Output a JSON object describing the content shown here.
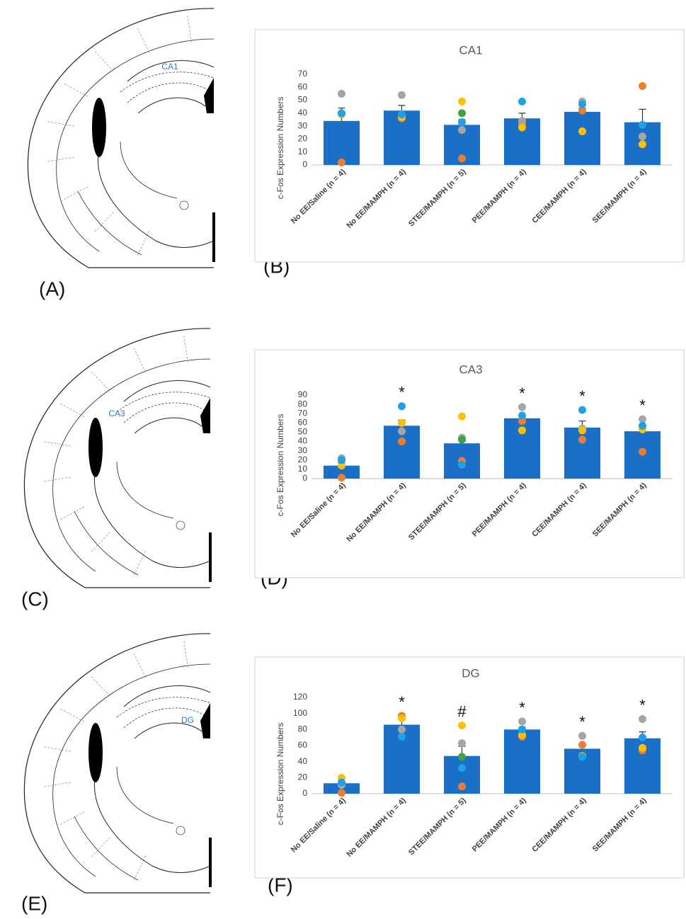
{
  "figure": {
    "panel_labels": [
      "(A)",
      "(B)",
      "(C)",
      "(D)",
      "(E)",
      "(F)"
    ]
  },
  "diagrams": [
    {
      "label": "CA1"
    },
    {
      "label": "CA3"
    },
    {
      "label": "DG"
    }
  ],
  "chart_data": [
    {
      "type": "bar",
      "title": "CA1",
      "y_label": "c-Fos Expression Numbers",
      "categories": [
        "No EE/Saline (n = 4)",
        "No EE/MAMPH (n = 4)",
        "STEE/MAMPH (n = 5)",
        "PEE/MAMPH (n = 4)",
        "CEE/MAMPH (n = 4)",
        "SEE/MAMPH (n = 4)"
      ],
      "values": [
        34,
        42,
        31,
        36,
        41,
        33
      ],
      "errors": [
        10,
        4,
        4,
        4,
        3,
        10
      ],
      "color": "#1a6fc9",
      "points": [
        {
          "color": "#ed7d31",
          "values": [
            2,
            36,
            5,
            32,
            42,
            61
          ]
        },
        {
          "color": "#a5a5a5",
          "values": [
            55,
            54,
            27,
            34,
            49,
            22
          ]
        },
        {
          "color": "#ffc000",
          "values": [
            39,
            37,
            49,
            29,
            26,
            16
          ]
        },
        {
          "color": "#1ea1e6",
          "values": [
            40,
            39,
            33,
            49,
            47,
            31
          ]
        },
        {
          "color": "#43a047",
          "values": [
            null,
            null,
            40,
            null,
            null,
            null
          ]
        }
      ],
      "annotations": [
        null,
        null,
        null,
        null,
        null,
        null
      ],
      "ylim": [
        0,
        70
      ],
      "yticks": [
        0,
        10,
        20,
        30,
        40,
        50,
        60,
        70
      ]
    },
    {
      "type": "bar",
      "title": "CA3",
      "y_label": "c-Fos Expression Numbers",
      "categories": [
        "No EE/Saline (n = 4)",
        "No EE/MAMPH (n = 4)",
        "STEE/MAMPH (n = 5)",
        "PEE/MAMPH (n = 4)",
        "CEE/MAMPH (n = 4)",
        "SEE/MAMPH (n = 4)"
      ],
      "values": [
        14,
        57,
        38,
        65,
        55,
        51
      ],
      "errors": [
        3,
        6,
        6,
        4,
        7,
        5
      ],
      "color": "#1a6fc9",
      "points": [
        {
          "color": "#ed7d31",
          "values": [
            1,
            40,
            19,
            62,
            42,
            29
          ]
        },
        {
          "color": "#a5a5a5",
          "values": [
            22,
            51,
            44,
            77,
            54,
            64
          ]
        },
        {
          "color": "#ffc000",
          "values": [
            14,
            60,
            67,
            52,
            52,
            53
          ]
        },
        {
          "color": "#1ea1e6",
          "values": [
            20,
            78,
            15,
            68,
            74,
            57
          ]
        },
        {
          "color": "#43a047",
          "values": [
            null,
            null,
            42,
            null,
            null,
            null
          ]
        }
      ],
      "annotations": [
        null,
        "*",
        null,
        "*",
        "*",
        "*"
      ],
      "ylim": [
        0,
        90
      ],
      "yticks": [
        0,
        10,
        20,
        30,
        40,
        50,
        60,
        70,
        80,
        90
      ]
    },
    {
      "type": "bar",
      "title": "DG",
      "y_label": "c-Fos Expression Numbers",
      "categories": [
        "No EE/Saline (n = 4)",
        "No EE/MAMPH (n = 4)",
        "STEE/MAMPH (n = 5)",
        "PEE/MAMPH (n = 4)",
        "CEE/MAMPH (n = 4)",
        "SEE/MAMPH (n = 4)"
      ],
      "values": [
        13,
        86,
        47,
        80,
        56,
        69
      ],
      "errors": [
        2,
        8,
        12,
        3,
        4,
        8
      ],
      "color": "#1a6fc9",
      "points": [
        {
          "color": "#ed7d31",
          "values": [
            1,
            97,
            9,
            71,
            61,
            54
          ]
        },
        {
          "color": "#a5a5a5",
          "values": [
            11,
            80,
            63,
            90,
            72,
            93
          ]
        },
        {
          "color": "#ffc000",
          "values": [
            20,
            94,
            85,
            73,
            47,
            57
          ]
        },
        {
          "color": "#1ea1e6",
          "values": [
            14,
            71,
            32,
            80,
            46,
            70
          ]
        },
        {
          "color": "#43a047",
          "values": [
            null,
            null,
            46,
            null,
            null,
            null
          ]
        }
      ],
      "annotations": [
        null,
        "*",
        "#",
        "*",
        "*",
        "*"
      ],
      "ylim": [
        0,
        120
      ],
      "yticks": [
        0,
        20,
        40,
        60,
        80,
        100,
        120
      ]
    }
  ]
}
